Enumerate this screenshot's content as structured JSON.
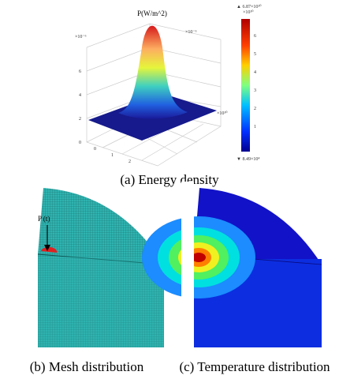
{
  "figure": {
    "panel_a": {
      "caption": "(a) Energy density",
      "plot_title": "P(W/m^2)",
      "z_axis_exponent": "×10⁻⁶",
      "y_axis_exponent": "×10⁻⁶",
      "x_axis_exponent": "×10¹⁰",
      "z_ticks": [
        "6",
        "4",
        "2",
        "0"
      ],
      "x_ticks": [
        "0",
        "1",
        "2"
      ],
      "colorbar": {
        "max_label": "▲ 6.87×10¹⁰",
        "exponent": "×10¹⁰",
        "ticks": [
          "6",
          "5",
          "4",
          "3",
          "2",
          "1"
        ],
        "min_label": "▼ 8.49×10⁴"
      }
    },
    "panel_b": {
      "caption": "(b) Mesh distribution",
      "load_label": "P (t)"
    },
    "panel_c": {
      "caption": "(c) Temperature distribution"
    }
  }
}
